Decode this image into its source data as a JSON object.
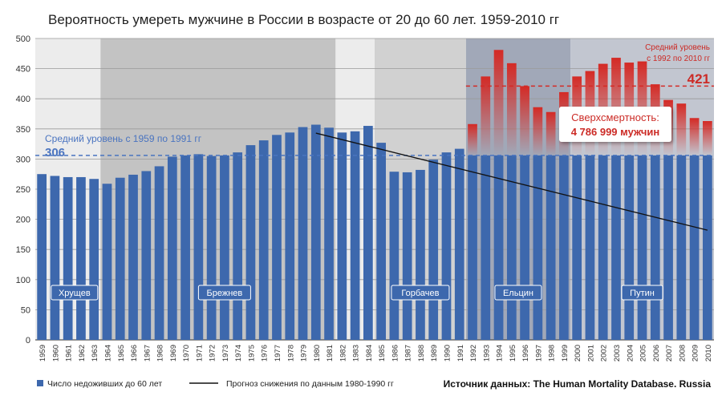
{
  "chart_data": {
    "type": "bar",
    "title": "Вероятность умереть мужчине в России в возрасте от 20 до 60 лет. 1959-2010 гг",
    "categories": [
      "1959",
      "1960",
      "1961",
      "1962",
      "1963",
      "1964",
      "1965",
      "1966",
      "1967",
      "1968",
      "1969",
      "1970",
      "1971",
      "1972",
      "1973",
      "1974",
      "1975",
      "1976",
      "1977",
      "1978",
      "1979",
      "1980",
      "1981",
      "1982",
      "1983",
      "1984",
      "1985",
      "1986",
      "1987",
      "1988",
      "1989",
      "1990",
      "1991",
      "1992",
      "1993",
      "1994",
      "1995",
      "1996",
      "1997",
      "1998",
      "1999",
      "2000",
      "2001",
      "2002",
      "2003",
      "2004",
      "2005",
      "2006",
      "2007",
      "2008",
      "2009",
      "2010"
    ],
    "series": [
      {
        "name": "Число недоживших до 60 лет",
        "values": [
          275,
          272,
          270,
          270,
          267,
          259,
          269,
          274,
          280,
          288,
          304,
          306,
          308,
          305,
          306,
          311,
          323,
          331,
          340,
          344,
          353,
          357,
          352,
          344,
          346,
          355,
          327,
          279,
          278,
          282,
          299,
          311,
          317,
          358,
          437,
          481,
          459,
          421,
          386,
          378,
          411,
          437,
          446,
          458,
          468,
          460,
          462,
          424,
          398,
          392,
          368,
          363
        ]
      },
      {
        "name": "Прогноз снижения по данным 1980-1990 гг",
        "x": [
          "1980",
          "2010"
        ],
        "values": [
          343,
          182
        ]
      }
    ],
    "ylim": [
      0,
      500
    ],
    "yticks": [
      0,
      50,
      100,
      150,
      200,
      250,
      300,
      350,
      400,
      450,
      500
    ],
    "grid": true,
    "colors": {
      "bar_blue": "#3d68ad",
      "bar_red": "#d42a25",
      "trend_line": "#111111",
      "avg1_line": "#4a74c0",
      "avg2_line": "#d42a25",
      "annotation_red": "#cc2b26"
    },
    "periods": [
      {
        "label": "Хрущев",
        "from": "1959",
        "to": "1964",
        "shade": "#ececec"
      },
      {
        "label": "Брежнев",
        "from": "1964",
        "to": "1982",
        "shade": "#c3c3c3"
      },
      {
        "label": "",
        "from": "1982",
        "to": "1984",
        "shade": "#ececec"
      },
      {
        "label": "Горбачев",
        "from": "1985",
        "to": "1991",
        "shade": "#d1d1d1"
      },
      {
        "label": "Ельцин",
        "from": "1992",
        "to": "1999",
        "shade": "#a1a8b8"
      },
      {
        "label": "Путин",
        "from": "2000",
        "to": "2010",
        "shade": "#c2c6d0"
      }
    ],
    "annotations": {
      "avg1_label": "Средний уровень с 1959 по 1991 гг",
      "avg1_value": 306,
      "avg1_value_text": "306",
      "avg2_label_line1": "Средний уровень",
      "avg2_label_line2": "с 1992 по 2010 гг",
      "avg2_value": 421,
      "avg2_value_text": "421",
      "excess_line1": "Сверхсмертность:",
      "excess_line2": "4 786 999  мужчин"
    },
    "legend": {
      "placement": "bottom-left",
      "bars_label": "Число недоживших до 60 лет",
      "line_label": "Прогноз снижения по данным 1980-1990 гг"
    },
    "source": "Источник данных: The Human Mortality Database. Russia"
  }
}
